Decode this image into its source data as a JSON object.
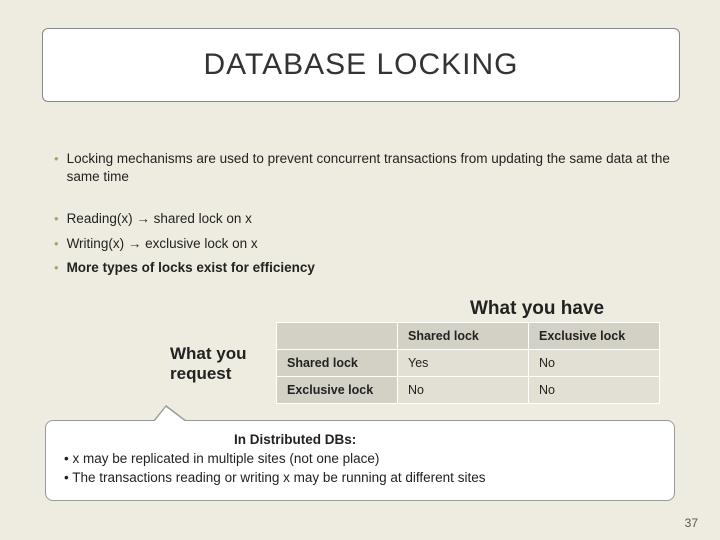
{
  "title": "DATABASE LOCKING",
  "bullets": {
    "b1": "Locking mechanisms are used to prevent concurrent transactions from updating the same data at the same time",
    "b2": "Reading(x) → shared lock on x",
    "b3": "Writing(x) → exclusive lock on x",
    "b4": "More types of locks exist for efficiency"
  },
  "labels": {
    "have": "What you have",
    "request": "What you request"
  },
  "table": {
    "col1": "Shared lock",
    "col2": "Exclusive lock",
    "row1_label": "Shared lock",
    "row2_label": "Exclusive lock",
    "r1c1": "Yes",
    "r1c2": "No",
    "r2c1": "No",
    "r2c2": "No"
  },
  "callout": {
    "title": "In Distributed DBs:",
    "line1": "• x may be replicated in multiple sites (not one place)",
    "line2": "• The transactions reading or writing x may be running at different sites"
  },
  "page_number": "37",
  "colors": {
    "background": "#eeece1",
    "bullet_dot": "#9cab72",
    "table_header_bg": "#d3d1c5",
    "table_cell_bg": "#e2e0d5",
    "box_bg": "#ffffff",
    "box_border": "#888888"
  }
}
